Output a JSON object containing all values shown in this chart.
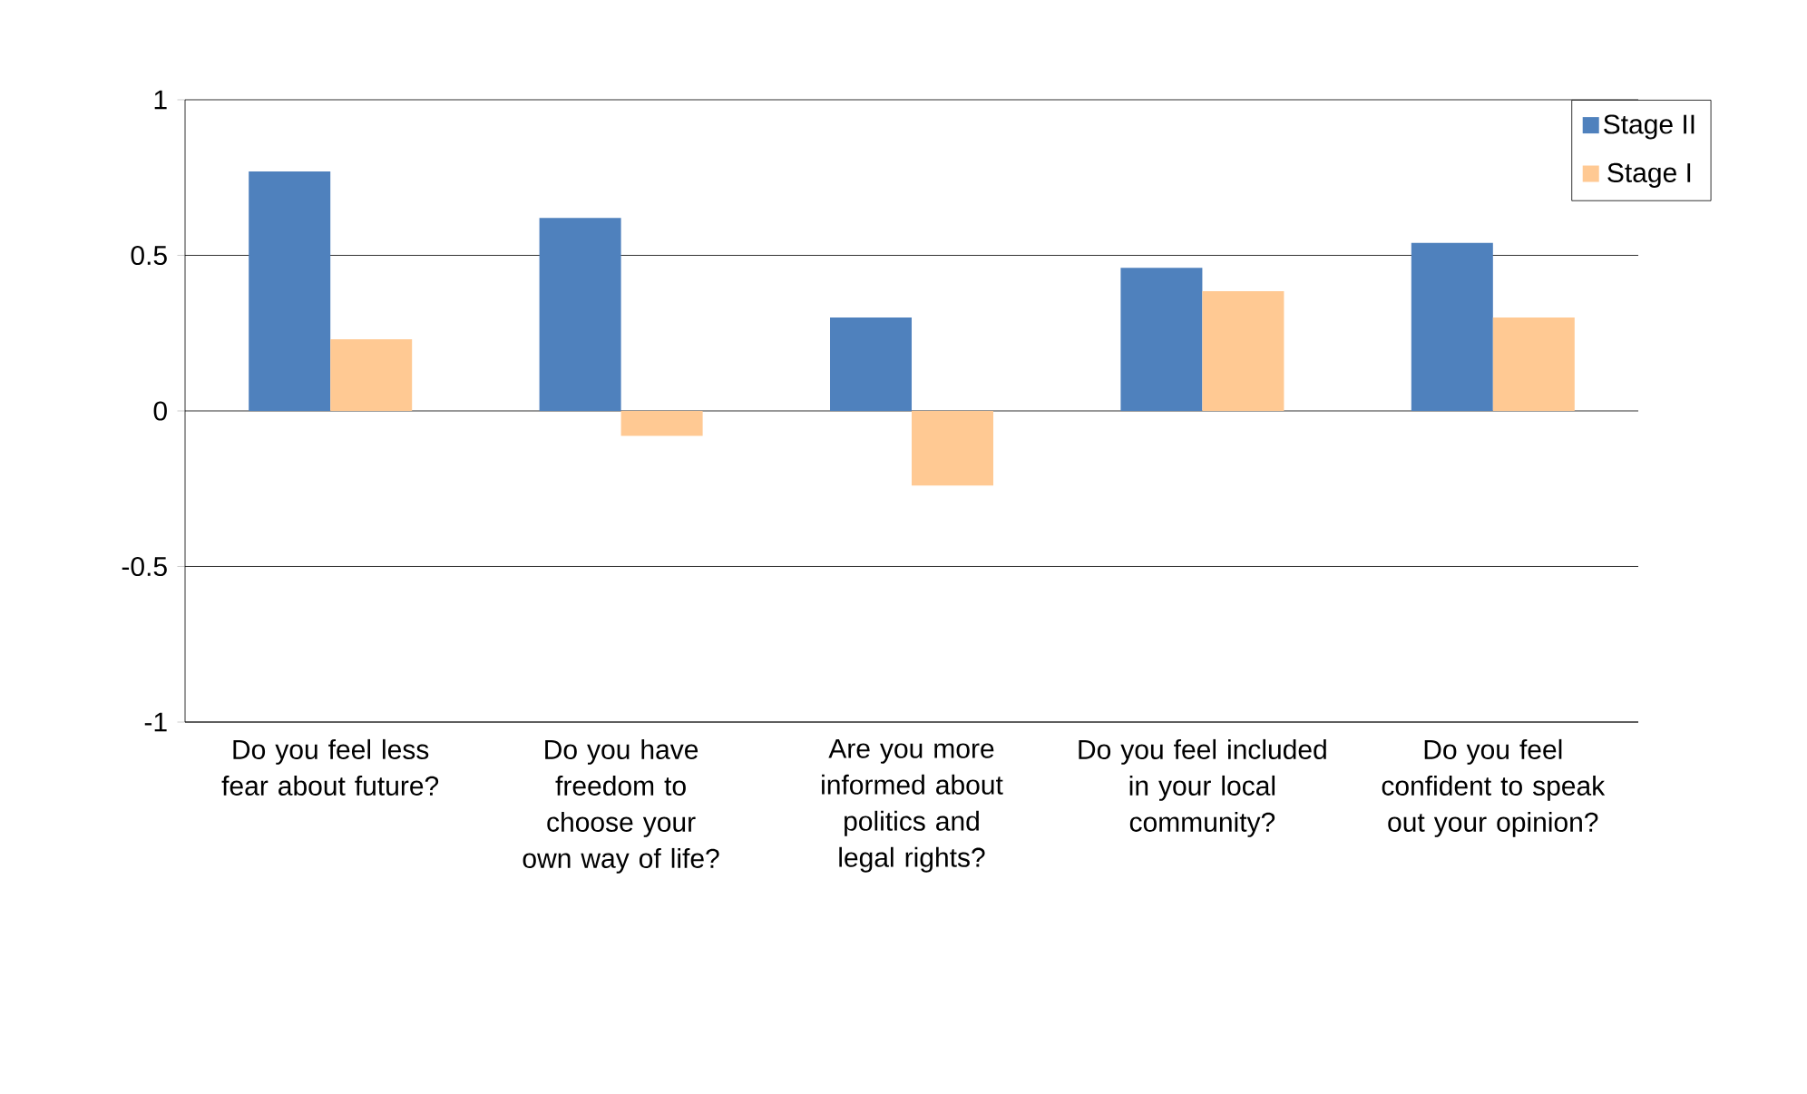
{
  "chart_data": {
    "type": "bar",
    "categories": [
      "Do you feel less fear about future?",
      "Do you have freedom to choose your own way of life?",
      "Are you more informed about politics and legal rights?",
      "Do you feel included in your local community?",
      "Do you feel confident to speak out your opinion?"
    ],
    "series": [
      {
        "name": "Stage II",
        "color": "#4f81bd",
        "values": [
          0.77,
          0.62,
          0.3,
          0.46,
          0.54
        ]
      },
      {
        "name": "Stage I",
        "color": "#ffc993",
        "values": [
          0.23,
          -0.08,
          -0.24,
          0.385,
          0.3
        ]
      }
    ],
    "ylim": [
      -1,
      1
    ],
    "yticks": [
      -1,
      -0.5,
      0,
      0.5,
      1
    ],
    "grid": "y",
    "legend": "top right"
  }
}
